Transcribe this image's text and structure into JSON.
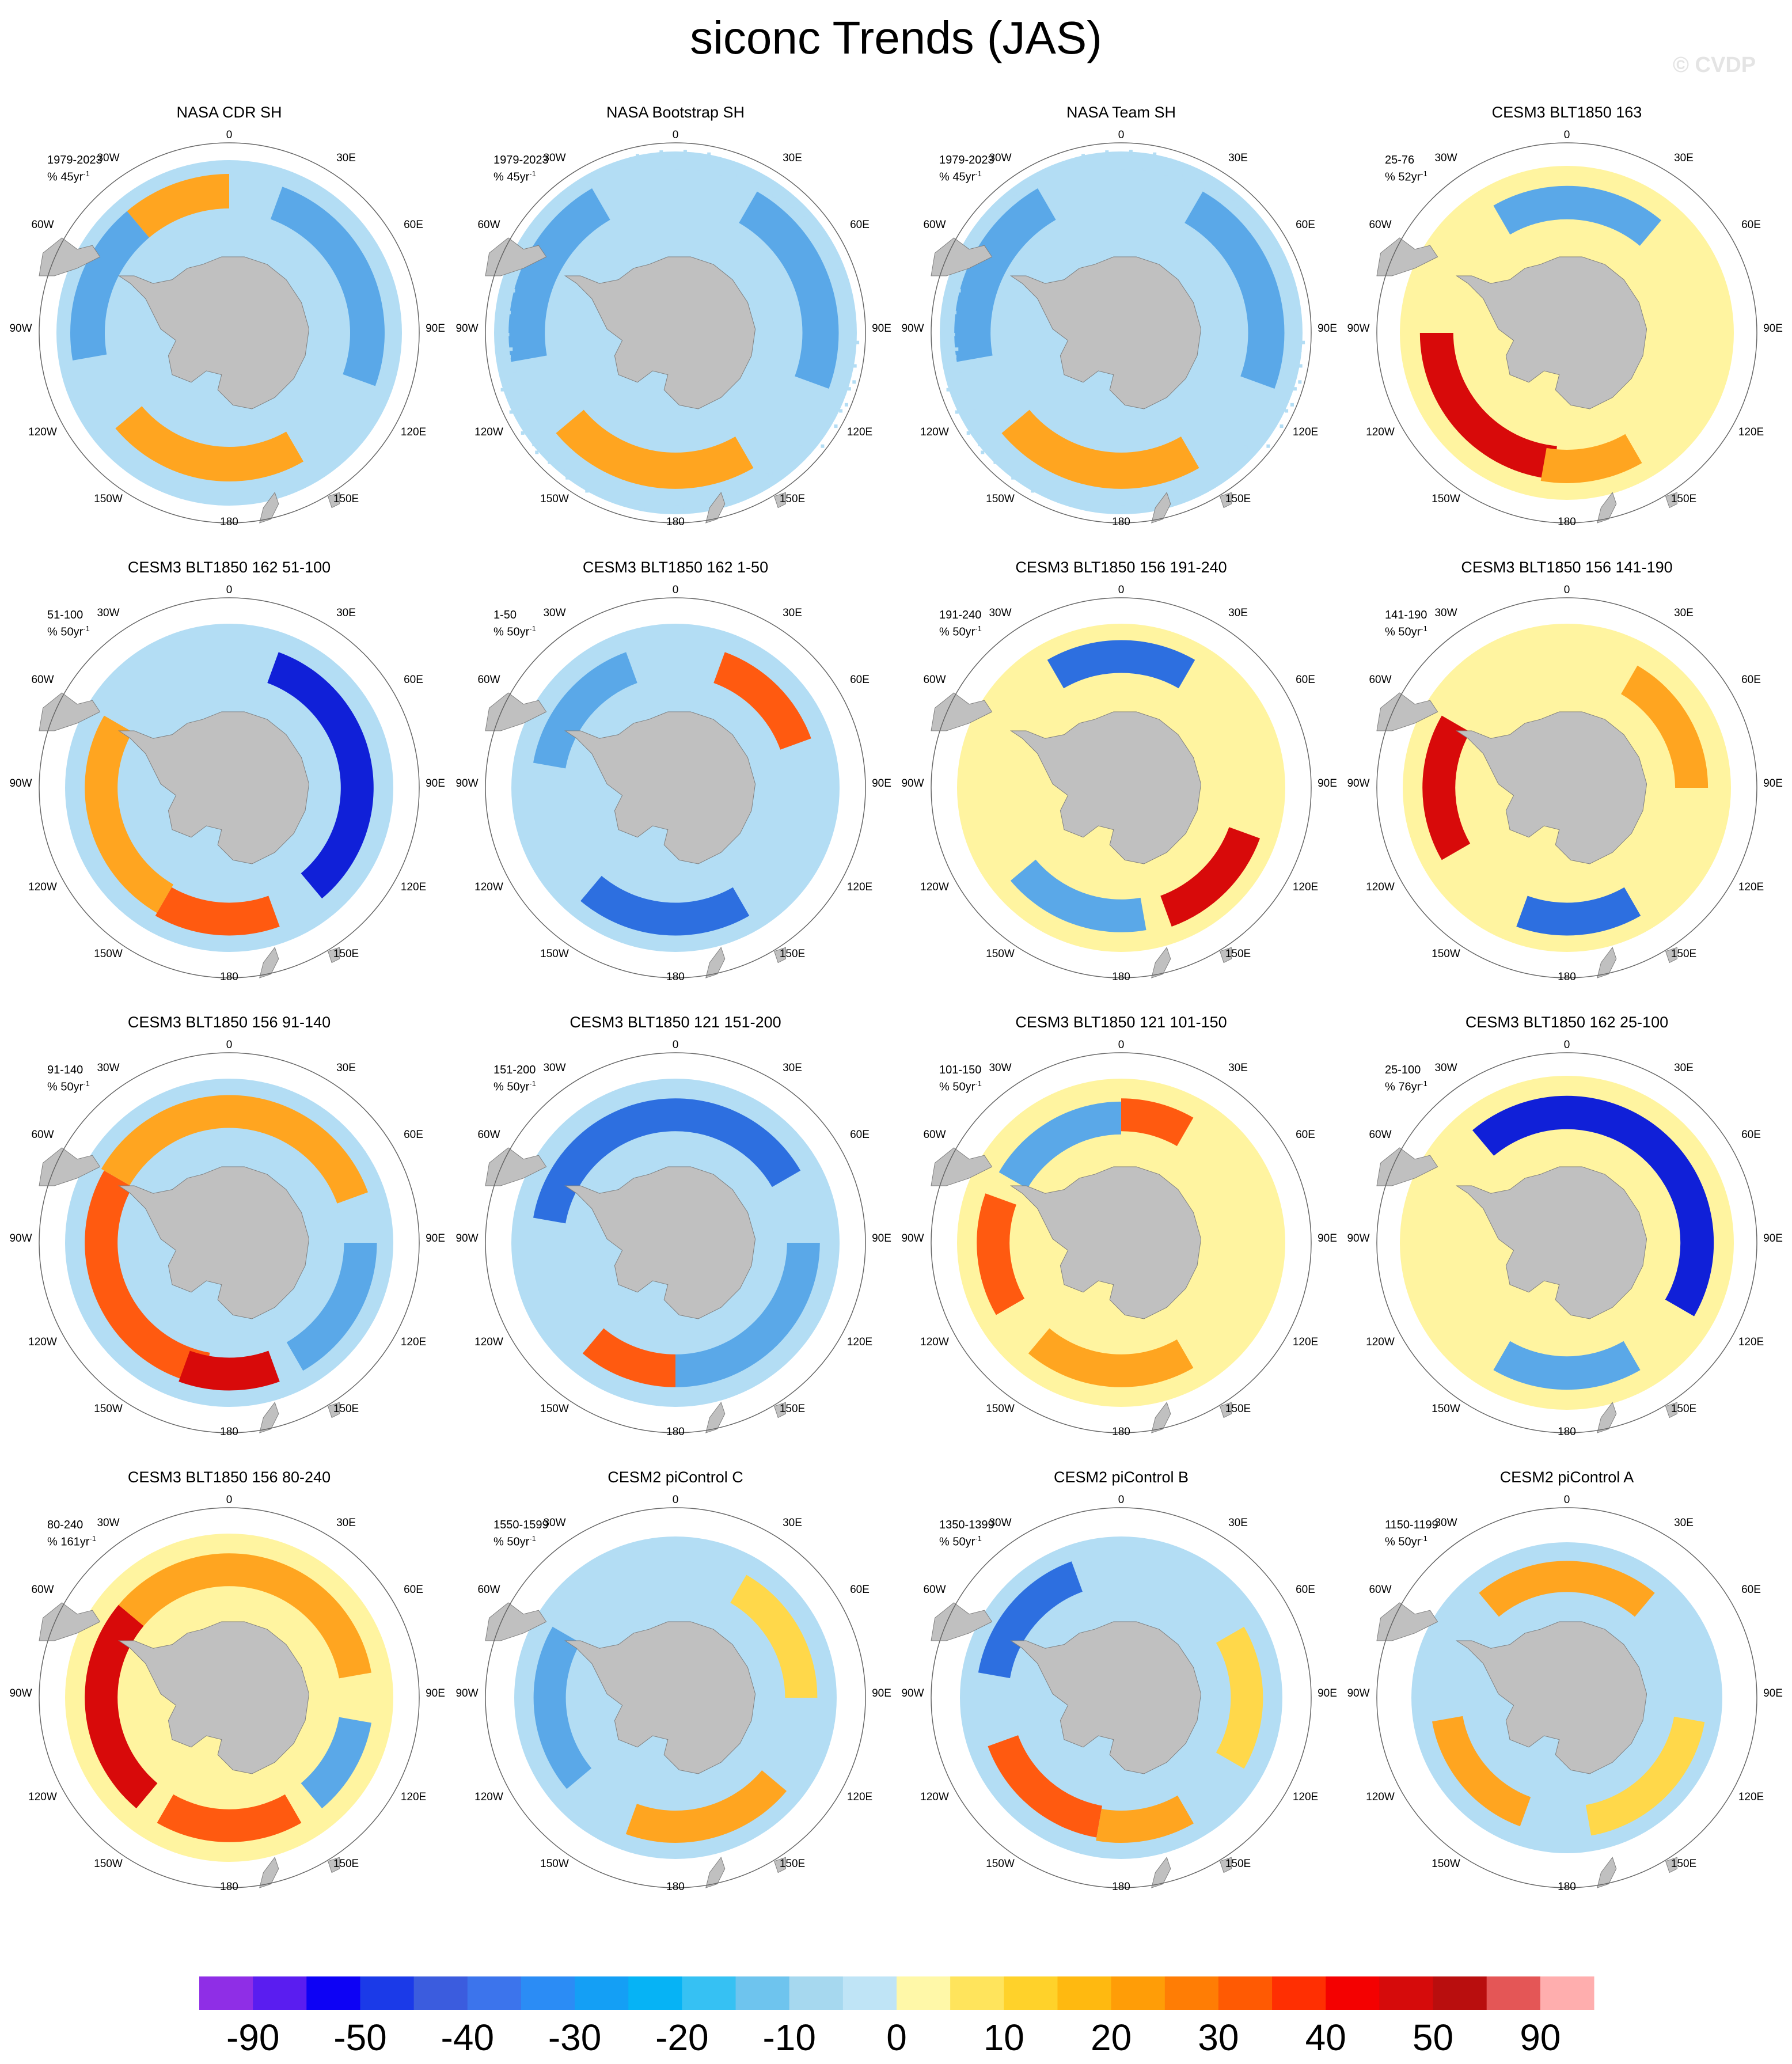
{
  "title": "siconc Trends (JAS)",
  "watermark": "© CVDP",
  "longitude_labels": [
    "0",
    "30E",
    "60E",
    "90E",
    "120E",
    "150E",
    "180",
    "150W",
    "120W",
    "90W",
    "60W",
    "30W"
  ],
  "panels": [
    {
      "title": "NASA CDR SH",
      "period": "1979-2023",
      "unit": "% 45yr",
      "exp": "-1",
      "pattern": "obs_cdr"
    },
    {
      "title": "NASA Bootstrap SH",
      "period": "1979-2023",
      "unit": "% 45yr",
      "exp": "-1",
      "pattern": "obs_boot"
    },
    {
      "title": "NASA Team SH",
      "period": "1979-2023",
      "unit": "% 45yr",
      "exp": "-1",
      "pattern": "obs_team"
    },
    {
      "title": "CESM3 BLT1850 163",
      "period": "25-76",
      "unit": "% 52yr",
      "exp": "-1",
      "pattern": "red_west"
    },
    {
      "title": "CESM3 BLT1850 162 51-100",
      "period": "51-100",
      "unit": "% 50yr",
      "exp": "-1",
      "pattern": "blue_east"
    },
    {
      "title": "CESM3 BLT1850 162 1-50",
      "period": "1-50",
      "unit": "% 50yr",
      "exp": "-1",
      "pattern": "mix_ne"
    },
    {
      "title": "CESM3 BLT1850 156 191-240",
      "period": "191-240",
      "unit": "% 50yr",
      "exp": "-1",
      "pattern": "red_se"
    },
    {
      "title": "CESM3 BLT1850 156 141-190",
      "period": "141-190",
      "unit": "% 50yr",
      "exp": "-1",
      "pattern": "red_west2"
    },
    {
      "title": "CESM3 BLT1850 156 91-140",
      "period": "91-140",
      "unit": "% 50yr",
      "exp": "-1",
      "pattern": "red_ring"
    },
    {
      "title": "CESM3 BLT1850 121 151-200",
      "period": "151-200",
      "unit": "% 50yr",
      "exp": "-1",
      "pattern": "blue_ring"
    },
    {
      "title": "CESM3 BLT1850 121 101-150",
      "period": "101-150",
      "unit": "% 50yr",
      "exp": "-1",
      "pattern": "red_west3"
    },
    {
      "title": "CESM3 BLT1850 162 25-100",
      "period": "25-100",
      "unit": "% 76yr",
      "exp": "-1",
      "pattern": "blue_east2"
    },
    {
      "title": "CESM3 BLT1850 156 80-240",
      "period": "80-240",
      "unit": "% 161yr",
      "exp": "-1",
      "pattern": "red_ring2"
    },
    {
      "title": "CESM2 piControl C",
      "period": "1550-1599",
      "unit": "% 50yr",
      "exp": "-1",
      "pattern": "weak"
    },
    {
      "title": "CESM2 piControl B",
      "period": "1350-1399",
      "unit": "% 50yr",
      "exp": "-1",
      "pattern": "red_sw"
    },
    {
      "title": "CESM2 piControl A",
      "period": "1150-1199",
      "unit": "% 50yr",
      "exp": "-1",
      "pattern": "red_n"
    }
  ],
  "colorbar": {
    "colors": [
      "#8f2ee6",
      "#5a1df0",
      "#0d02f5",
      "#1b3ae8",
      "#3b5cde",
      "#3c74ec",
      "#2b8cf5",
      "#149ff5",
      "#06b3f5",
      "#36c1f3",
      "#6ec4ee",
      "#a6d8ef",
      "#bfe4f6",
      "#fff8a8",
      "#ffe45c",
      "#ffd22a",
      "#ffb910",
      "#ff9d07",
      "#ff7d05",
      "#ff5a03",
      "#ff2f02",
      "#f40101",
      "#d60b0b",
      "#b90e0e",
      "#e45656",
      "#ffaeae"
    ],
    "labels": [
      "-90",
      "-50",
      "-40",
      "-30",
      "-20",
      "-10",
      "0",
      "10",
      "20",
      "30",
      "40",
      "50",
      "90"
    ]
  },
  "legend_colors": {
    "land": "#c0c0c0",
    "ocean": "#ffffff"
  }
}
